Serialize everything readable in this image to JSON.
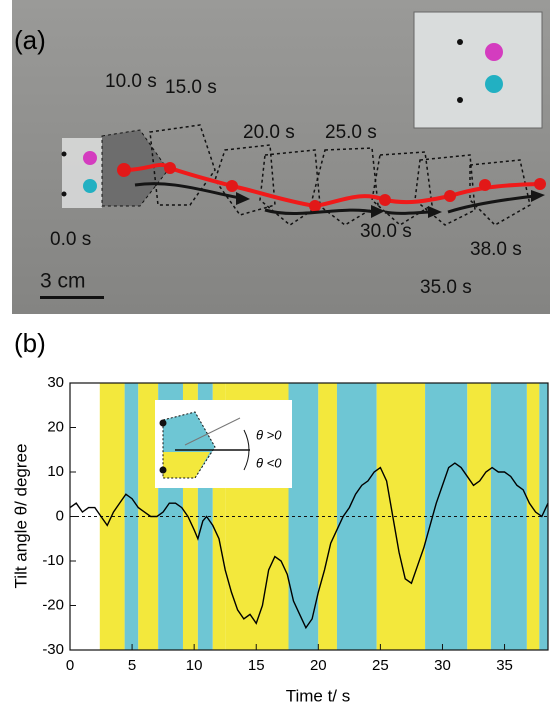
{
  "panel_a": {
    "label": "(a)",
    "time_labels": [
      "10.0 s",
      "15.0 s",
      "20.0 s",
      "25.0 s",
      "0.0 s",
      "30.0 s",
      "35.0 s",
      "38.0 s"
    ],
    "scale_bar": "3 cm"
  },
  "chart_data": {
    "type": "line",
    "panel_label": "(b)",
    "x_label": "Time t/ s",
    "y_label": "Tilt angle θ/ degree",
    "annotations": [
      "θ >0",
      "θ <0"
    ],
    "xlim": [
      0,
      38.5
    ],
    "xticks": [
      0,
      5,
      10,
      15,
      20,
      25,
      30,
      35
    ],
    "ylim": [
      -30,
      30
    ],
    "yticks": [
      -30,
      -20,
      -10,
      0,
      10,
      20,
      30
    ],
    "reference_line": 0,
    "bands": [
      {
        "start": 2.4,
        "end": 4.4,
        "color": "#f3e83c"
      },
      {
        "start": 4.4,
        "end": 5.5,
        "color": "#6ec6d4"
      },
      {
        "start": 5.5,
        "end": 7.1,
        "color": "#f3e83c"
      },
      {
        "start": 7.1,
        "end": 9.1,
        "color": "#6ec6d4"
      },
      {
        "start": 9.1,
        "end": 10.3,
        "color": "#f3e83c"
      },
      {
        "start": 10.3,
        "end": 11.5,
        "color": "#6ec6d4"
      },
      {
        "start": 11.5,
        "end": 12.5,
        "color": "#f3e83c"
      },
      {
        "start": 12.5,
        "end": 17.6,
        "color": "#f3e83c"
      },
      {
        "start": 17.6,
        "end": 20.0,
        "color": "#6ec6d4"
      },
      {
        "start": 20.0,
        "end": 21.5,
        "color": "#f3e83c"
      },
      {
        "start": 21.5,
        "end": 24.7,
        "color": "#6ec6d4"
      },
      {
        "start": 24.7,
        "end": 28.6,
        "color": "#f3e83c"
      },
      {
        "start": 28.6,
        "end": 32.0,
        "color": "#6ec6d4"
      },
      {
        "start": 32.0,
        "end": 33.9,
        "color": "#f3e83c"
      },
      {
        "start": 33.9,
        "end": 36.8,
        "color": "#6ec6d4"
      },
      {
        "start": 36.8,
        "end": 37.8,
        "color": "#f3e83c"
      },
      {
        "start": 37.8,
        "end": 38.5,
        "color": "#6ec6d4"
      }
    ],
    "x": [
      0,
      0.5,
      1,
      1.5,
      2,
      2.5,
      3,
      3.5,
      4,
      4.5,
      5,
      5.5,
      6,
      6.5,
      7,
      7.5,
      8,
      8.5,
      9,
      9.5,
      10,
      10.3,
      10.7,
      11,
      11.5,
      12,
      12.5,
      13,
      13.5,
      14,
      14.5,
      15,
      15.5,
      16,
      16.5,
      17,
      17.5,
      18,
      18.5,
      19,
      19.5,
      20,
      20.5,
      21,
      21.5,
      22,
      22.5,
      23,
      23.5,
      24,
      24.5,
      25,
      25.5,
      26,
      26.5,
      27,
      27.5,
      28,
      28.5,
      29,
      29.5,
      30,
      30.5,
      31,
      31.5,
      32,
      32.5,
      33,
      33.5,
      34,
      34.5,
      35,
      35.5,
      36,
      36.5,
      37,
      37.5,
      38,
      38.5
    ],
    "series": [
      {
        "color": "#000000",
        "values": [
          2,
          3,
          1,
          2,
          2,
          0,
          -2,
          1,
          3,
          5,
          4,
          2,
          1,
          0,
          0,
          1,
          3,
          3,
          2,
          0,
          -3,
          -5,
          -1,
          0,
          -2,
          -5,
          -12,
          -17,
          -21,
          -23,
          -22,
          -24,
          -20,
          -12,
          -9,
          -10,
          -13,
          -19,
          -22,
          -25,
          -23,
          -17,
          -12,
          -6,
          -3,
          0,
          2,
          5,
          7,
          8,
          10,
          11,
          8,
          0,
          -8,
          -14,
          -15,
          -11,
          -7,
          -2,
          3,
          7,
          11,
          12,
          11,
          9,
          7,
          8,
          10,
          11,
          10,
          10,
          9,
          7,
          6,
          3,
          1,
          0,
          3
        ]
      }
    ],
    "grid": false
  }
}
